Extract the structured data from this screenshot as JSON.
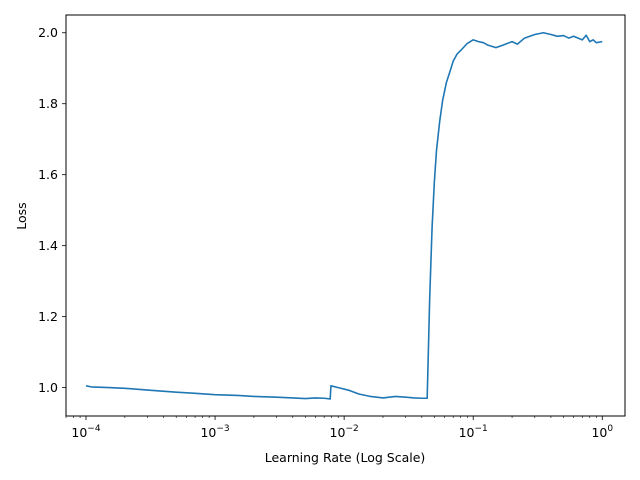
{
  "chart_data": {
    "type": "line",
    "title": "",
    "xlabel": "Learning Rate (Log Scale)",
    "ylabel": "Loss",
    "xscale": "log",
    "xlim": [
      7e-05,
      1.5
    ],
    "ylim": [
      0.92,
      2.05
    ],
    "grid": false,
    "legend": "none",
    "line_color": "#1f77b4",
    "x_ticks": [
      {
        "value": 0.0001,
        "base": "10",
        "exp": "−4"
      },
      {
        "value": 0.001,
        "base": "10",
        "exp": "−3"
      },
      {
        "value": 0.01,
        "base": "10",
        "exp": "−2"
      },
      {
        "value": 0.1,
        "base": "10",
        "exp": "−1"
      },
      {
        "value": 1,
        "base": "10",
        "exp": "0"
      }
    ],
    "y_ticks": [
      "1.0",
      "1.2",
      "1.4",
      "1.6",
      "1.8",
      "2.0"
    ],
    "series": [
      {
        "x": [
          0.0001,
          0.00011,
          0.00015,
          0.0002,
          0.0003,
          0.0005,
          0.0007,
          0.001,
          0.0015,
          0.002,
          0.003,
          0.004,
          0.005,
          0.006,
          0.007,
          0.0078,
          0.0079,
          0.009,
          0.011,
          0.013,
          0.016,
          0.02,
          0.025,
          0.03,
          0.035,
          0.04,
          0.044,
          0.046,
          0.048,
          0.05,
          0.052,
          0.055,
          0.058,
          0.062,
          0.066,
          0.07,
          0.075,
          0.08,
          0.09,
          0.1,
          0.11,
          0.12,
          0.13,
          0.15,
          0.17,
          0.2,
          0.22,
          0.25,
          0.3,
          0.35,
          0.4,
          0.45,
          0.5,
          0.55,
          0.6,
          0.7,
          0.75,
          0.8,
          0.85,
          0.9,
          1.0
        ],
        "y": [
          1.005,
          1.002,
          1.0,
          0.998,
          0.993,
          0.987,
          0.984,
          0.98,
          0.978,
          0.975,
          0.973,
          0.971,
          0.969,
          0.971,
          0.97,
          0.968,
          1.005,
          1.0,
          0.992,
          0.982,
          0.975,
          0.971,
          0.975,
          0.973,
          0.971,
          0.97,
          0.97,
          1.25,
          1.45,
          1.58,
          1.67,
          1.75,
          1.81,
          1.86,
          1.89,
          1.92,
          1.94,
          1.95,
          1.97,
          1.98,
          1.975,
          1.972,
          1.965,
          1.958,
          1.965,
          1.975,
          1.968,
          1.985,
          1.995,
          2.0,
          1.995,
          1.99,
          1.992,
          1.985,
          1.99,
          1.98,
          1.993,
          1.975,
          1.98,
          1.972,
          1.975
        ]
      }
    ]
  }
}
